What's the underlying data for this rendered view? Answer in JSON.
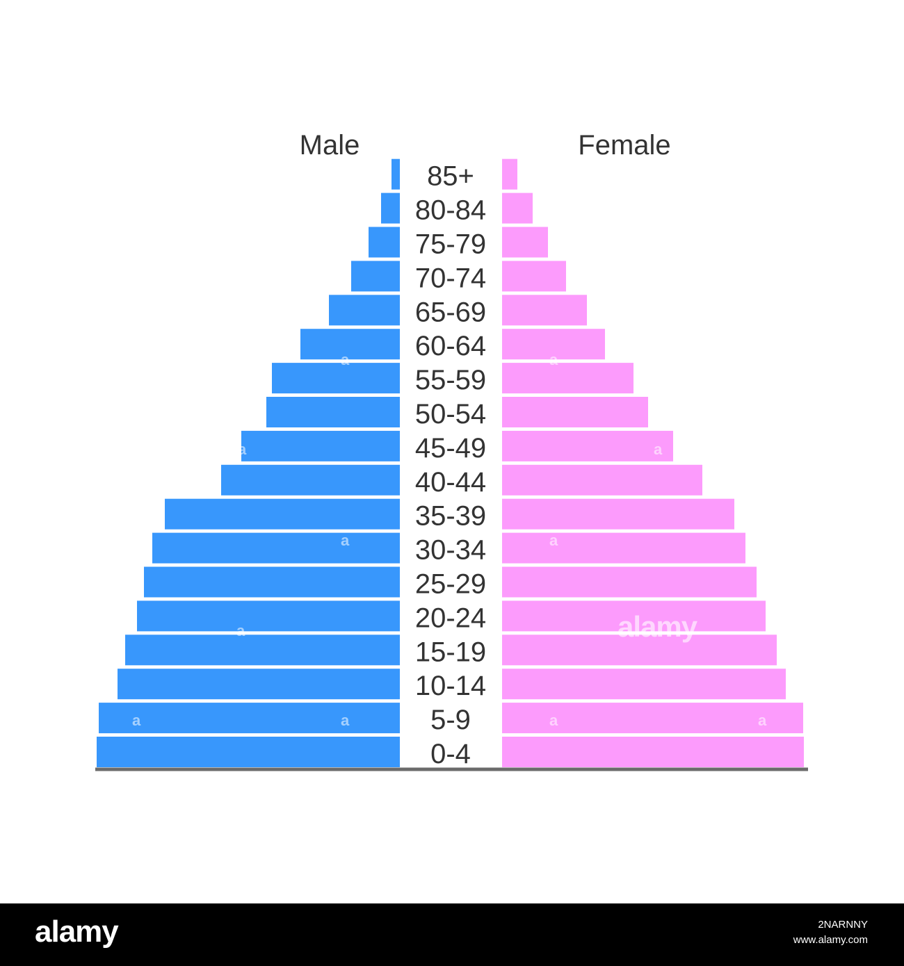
{
  "chart_data": {
    "type": "bar",
    "orientation": "horizontal-pyramid",
    "categories": [
      "0-4",
      "5-9",
      "10-14",
      "15-19",
      "20-24",
      "25-29",
      "30-34",
      "35-39",
      "40-44",
      "45-49",
      "50-54",
      "55-59",
      "60-64",
      "65-69",
      "70-74",
      "75-79",
      "80-84",
      "85+"
    ],
    "series": [
      {
        "name": "Male",
        "color": "#3897fc",
        "values": [
          436,
          433,
          406,
          395,
          378,
          368,
          356,
          338,
          257,
          228,
          192,
          184,
          143,
          102,
          70,
          45,
          27,
          12
        ]
      },
      {
        "name": "Female",
        "color": "#fc9bfc",
        "values": [
          434,
          433,
          408,
          395,
          379,
          366,
          350,
          334,
          288,
          246,
          210,
          189,
          148,
          122,
          92,
          66,
          44,
          22
        ]
      }
    ],
    "grid": false,
    "legend": "none",
    "baseline_color": "#6b6b6b",
    "label_color": "#333333"
  },
  "watermark": {
    "logo": "alamy",
    "small_mark": "a",
    "image_id": "2NARNNY",
    "site": "www.alamy.com"
  }
}
